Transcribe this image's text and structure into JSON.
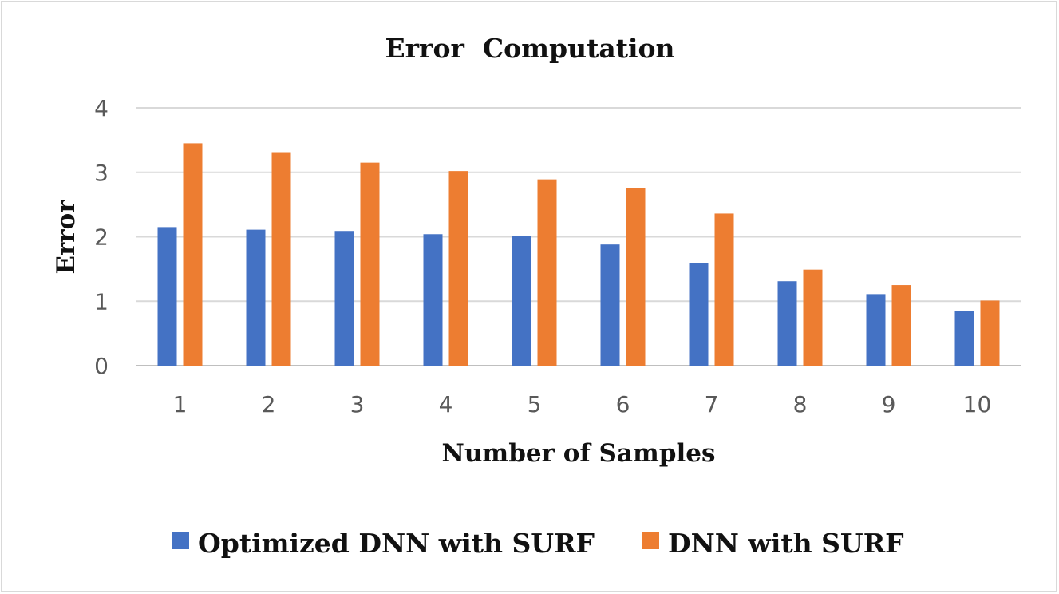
{
  "chart_data": {
    "type": "bar",
    "title": "Error  Computation",
    "xlabel": "Number of Samples",
    "ylabel": "Error",
    "categories": [
      "1",
      "2",
      "3",
      "4",
      "5",
      "6",
      "7",
      "8",
      "9",
      "10"
    ],
    "ylim": [
      0,
      4
    ],
    "yticks": [
      "0",
      "1",
      "2",
      "3",
      "4"
    ],
    "grid": true,
    "legend_position": "bottom",
    "series": [
      {
        "name": "Optimized DNN with SURF",
        "color": "#4472c4",
        "values": [
          2.15,
          2.11,
          2.09,
          2.04,
          2.01,
          1.88,
          1.59,
          1.31,
          1.11,
          0.85
        ]
      },
      {
        "name": "DNN with SURF",
        "color": "#ed7d31",
        "values": [
          3.45,
          3.3,
          3.15,
          3.02,
          2.89,
          2.75,
          2.36,
          1.49,
          1.25,
          1.01
        ]
      }
    ]
  }
}
